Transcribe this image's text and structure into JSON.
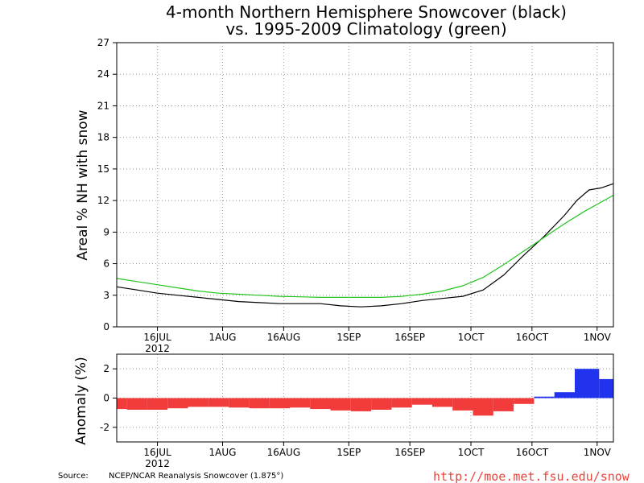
{
  "title_line1": "4-month Northern Hemisphere Snowcover (black)",
  "title_line2": "vs. 1995-2009 Climatology (green)",
  "source_label": "Source:",
  "source_text": "NCEP/NCAR Reanalysis Snowcover (1.875°)",
  "url": "http://moe.met.fsu.edu/snow",
  "colors": {
    "observed": "#000000",
    "climatology": "#22c41e",
    "negative": "#f23c3c",
    "positive": "#2233ee"
  },
  "chart_data": [
    {
      "type": "line",
      "ylabel": "Areal % NH with snow",
      "ylim": [
        0,
        27
      ],
      "yticks": [
        0,
        3,
        6,
        9,
        12,
        15,
        18,
        21,
        24,
        27
      ],
      "xlim": [
        "2012-07-06",
        "2012-11-05"
      ],
      "x_tick_labels": [
        {
          "label": "16JUL",
          "date": "2012-07-16",
          "sub": "2012"
        },
        {
          "label": "1AUG",
          "date": "2012-08-01",
          "sub": ""
        },
        {
          "label": "16AUG",
          "date": "2012-08-16",
          "sub": ""
        },
        {
          "label": "1SEP",
          "date": "2012-09-01",
          "sub": ""
        },
        {
          "label": "16SEP",
          "date": "2012-09-16",
          "sub": ""
        },
        {
          "label": "1OCT",
          "date": "2012-10-01",
          "sub": ""
        },
        {
          "label": "16OCT",
          "date": "2012-10-16",
          "sub": ""
        },
        {
          "label": "1NOV",
          "date": "2012-11-01",
          "sub": ""
        }
      ],
      "grid": true,
      "series": [
        {
          "name": "black",
          "x": [
            "2012-07-06",
            "2012-07-11",
            "2012-07-16",
            "2012-07-21",
            "2012-07-26",
            "2012-07-31",
            "2012-08-05",
            "2012-08-10",
            "2012-08-15",
            "2012-08-20",
            "2012-08-25",
            "2012-08-30",
            "2012-09-04",
            "2012-09-09",
            "2012-09-14",
            "2012-09-19",
            "2012-09-24",
            "2012-09-29",
            "2012-10-04",
            "2012-10-09",
            "2012-10-14",
            "2012-10-19",
            "2012-10-24",
            "2012-10-27",
            "2012-10-30",
            "2012-11-02",
            "2012-11-05"
          ],
          "y": [
            3.8,
            3.5,
            3.2,
            3.0,
            2.8,
            2.6,
            2.4,
            2.3,
            2.2,
            2.2,
            2.2,
            2.0,
            1.9,
            2.0,
            2.2,
            2.5,
            2.7,
            2.9,
            3.5,
            4.9,
            6.8,
            8.6,
            10.6,
            12.0,
            13.0,
            13.2,
            13.6
          ]
        },
        {
          "name": "green",
          "x": [
            "2012-07-06",
            "2012-07-11",
            "2012-07-16",
            "2012-07-21",
            "2012-07-26",
            "2012-07-31",
            "2012-08-05",
            "2012-08-10",
            "2012-08-15",
            "2012-08-20",
            "2012-08-25",
            "2012-08-30",
            "2012-09-04",
            "2012-09-09",
            "2012-09-14",
            "2012-09-19",
            "2012-09-24",
            "2012-09-29",
            "2012-10-04",
            "2012-10-09",
            "2012-10-14",
            "2012-10-19",
            "2012-10-24",
            "2012-10-29",
            "2012-11-05"
          ],
          "y": [
            4.6,
            4.3,
            4.0,
            3.7,
            3.4,
            3.2,
            3.1,
            3.0,
            2.9,
            2.85,
            2.8,
            2.8,
            2.8,
            2.8,
            2.9,
            3.1,
            3.4,
            3.9,
            4.7,
            5.9,
            7.2,
            8.5,
            9.8,
            11.0,
            12.5
          ]
        }
      ]
    },
    {
      "type": "bar",
      "ylabel": "Anomaly (%)",
      "ylim": [
        -3,
        3
      ],
      "yticks": [
        -2,
        0,
        2
      ],
      "xlim": [
        "2012-07-06",
        "2012-11-05"
      ],
      "x_tick_labels": [
        {
          "label": "16JUL",
          "date": "2012-07-16",
          "sub": "2012"
        },
        {
          "label": "1AUG",
          "date": "2012-08-01",
          "sub": ""
        },
        {
          "label": "16AUG",
          "date": "2012-08-16",
          "sub": ""
        },
        {
          "label": "1SEP",
          "date": "2012-09-01",
          "sub": ""
        },
        {
          "label": "16SEP",
          "date": "2012-09-16",
          "sub": ""
        },
        {
          "label": "1OCT",
          "date": "2012-10-01",
          "sub": ""
        },
        {
          "label": "16OCT",
          "date": "2012-10-16",
          "sub": ""
        },
        {
          "label": "1NOV",
          "date": "2012-11-01",
          "sub": ""
        }
      ],
      "grid": true,
      "x": [
        "2012-07-06",
        "2012-07-11",
        "2012-07-16",
        "2012-07-21",
        "2012-07-26",
        "2012-07-31",
        "2012-08-05",
        "2012-08-10",
        "2012-08-15",
        "2012-08-20",
        "2012-08-25",
        "2012-08-30",
        "2012-09-04",
        "2012-09-09",
        "2012-09-14",
        "2012-09-19",
        "2012-09-24",
        "2012-09-29",
        "2012-10-04",
        "2012-10-09",
        "2012-10-14",
        "2012-10-19",
        "2012-10-24",
        "2012-10-29",
        "2012-11-05"
      ],
      "values": [
        -0.75,
        -0.8,
        -0.8,
        -0.7,
        -0.6,
        -0.6,
        -0.65,
        -0.7,
        -0.7,
        -0.65,
        -0.75,
        -0.85,
        -0.9,
        -0.8,
        -0.65,
        -0.45,
        -0.6,
        -0.85,
        -1.2,
        -0.9,
        -0.4,
        0.1,
        0.4,
        2.0,
        1.3
      ]
    }
  ]
}
